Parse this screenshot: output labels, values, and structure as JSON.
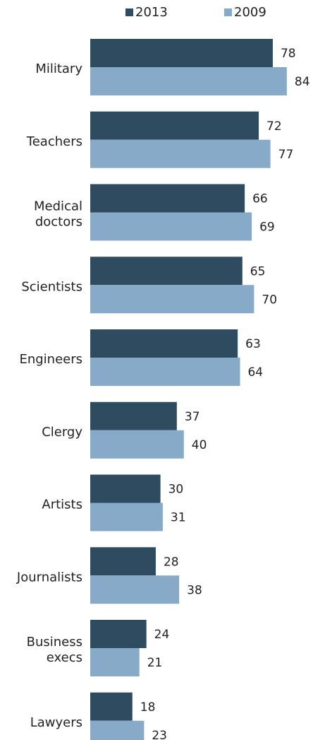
{
  "chart_data": {
    "type": "bar",
    "orientation": "horizontal",
    "categories": [
      "Military",
      "Teachers",
      "Medical doctors",
      "Scientists",
      "Engineers",
      "Clergy",
      "Artists",
      "Journalists",
      "Business execs",
      "Lawyers"
    ],
    "series": [
      {
        "name": "2013",
        "color": "#2f4b5f",
        "values": [
          78,
          72,
          66,
          65,
          63,
          37,
          30,
          28,
          24,
          18
        ]
      },
      {
        "name": "2009",
        "color": "#86aac8",
        "values": [
          84,
          77,
          69,
          70,
          64,
          40,
          31,
          38,
          21,
          23
        ]
      }
    ],
    "title": "",
    "xlabel": "",
    "ylabel": "",
    "xlim": [
      0,
      90
    ],
    "grid": false,
    "legend_position": "top-center",
    "data_labels": true
  }
}
